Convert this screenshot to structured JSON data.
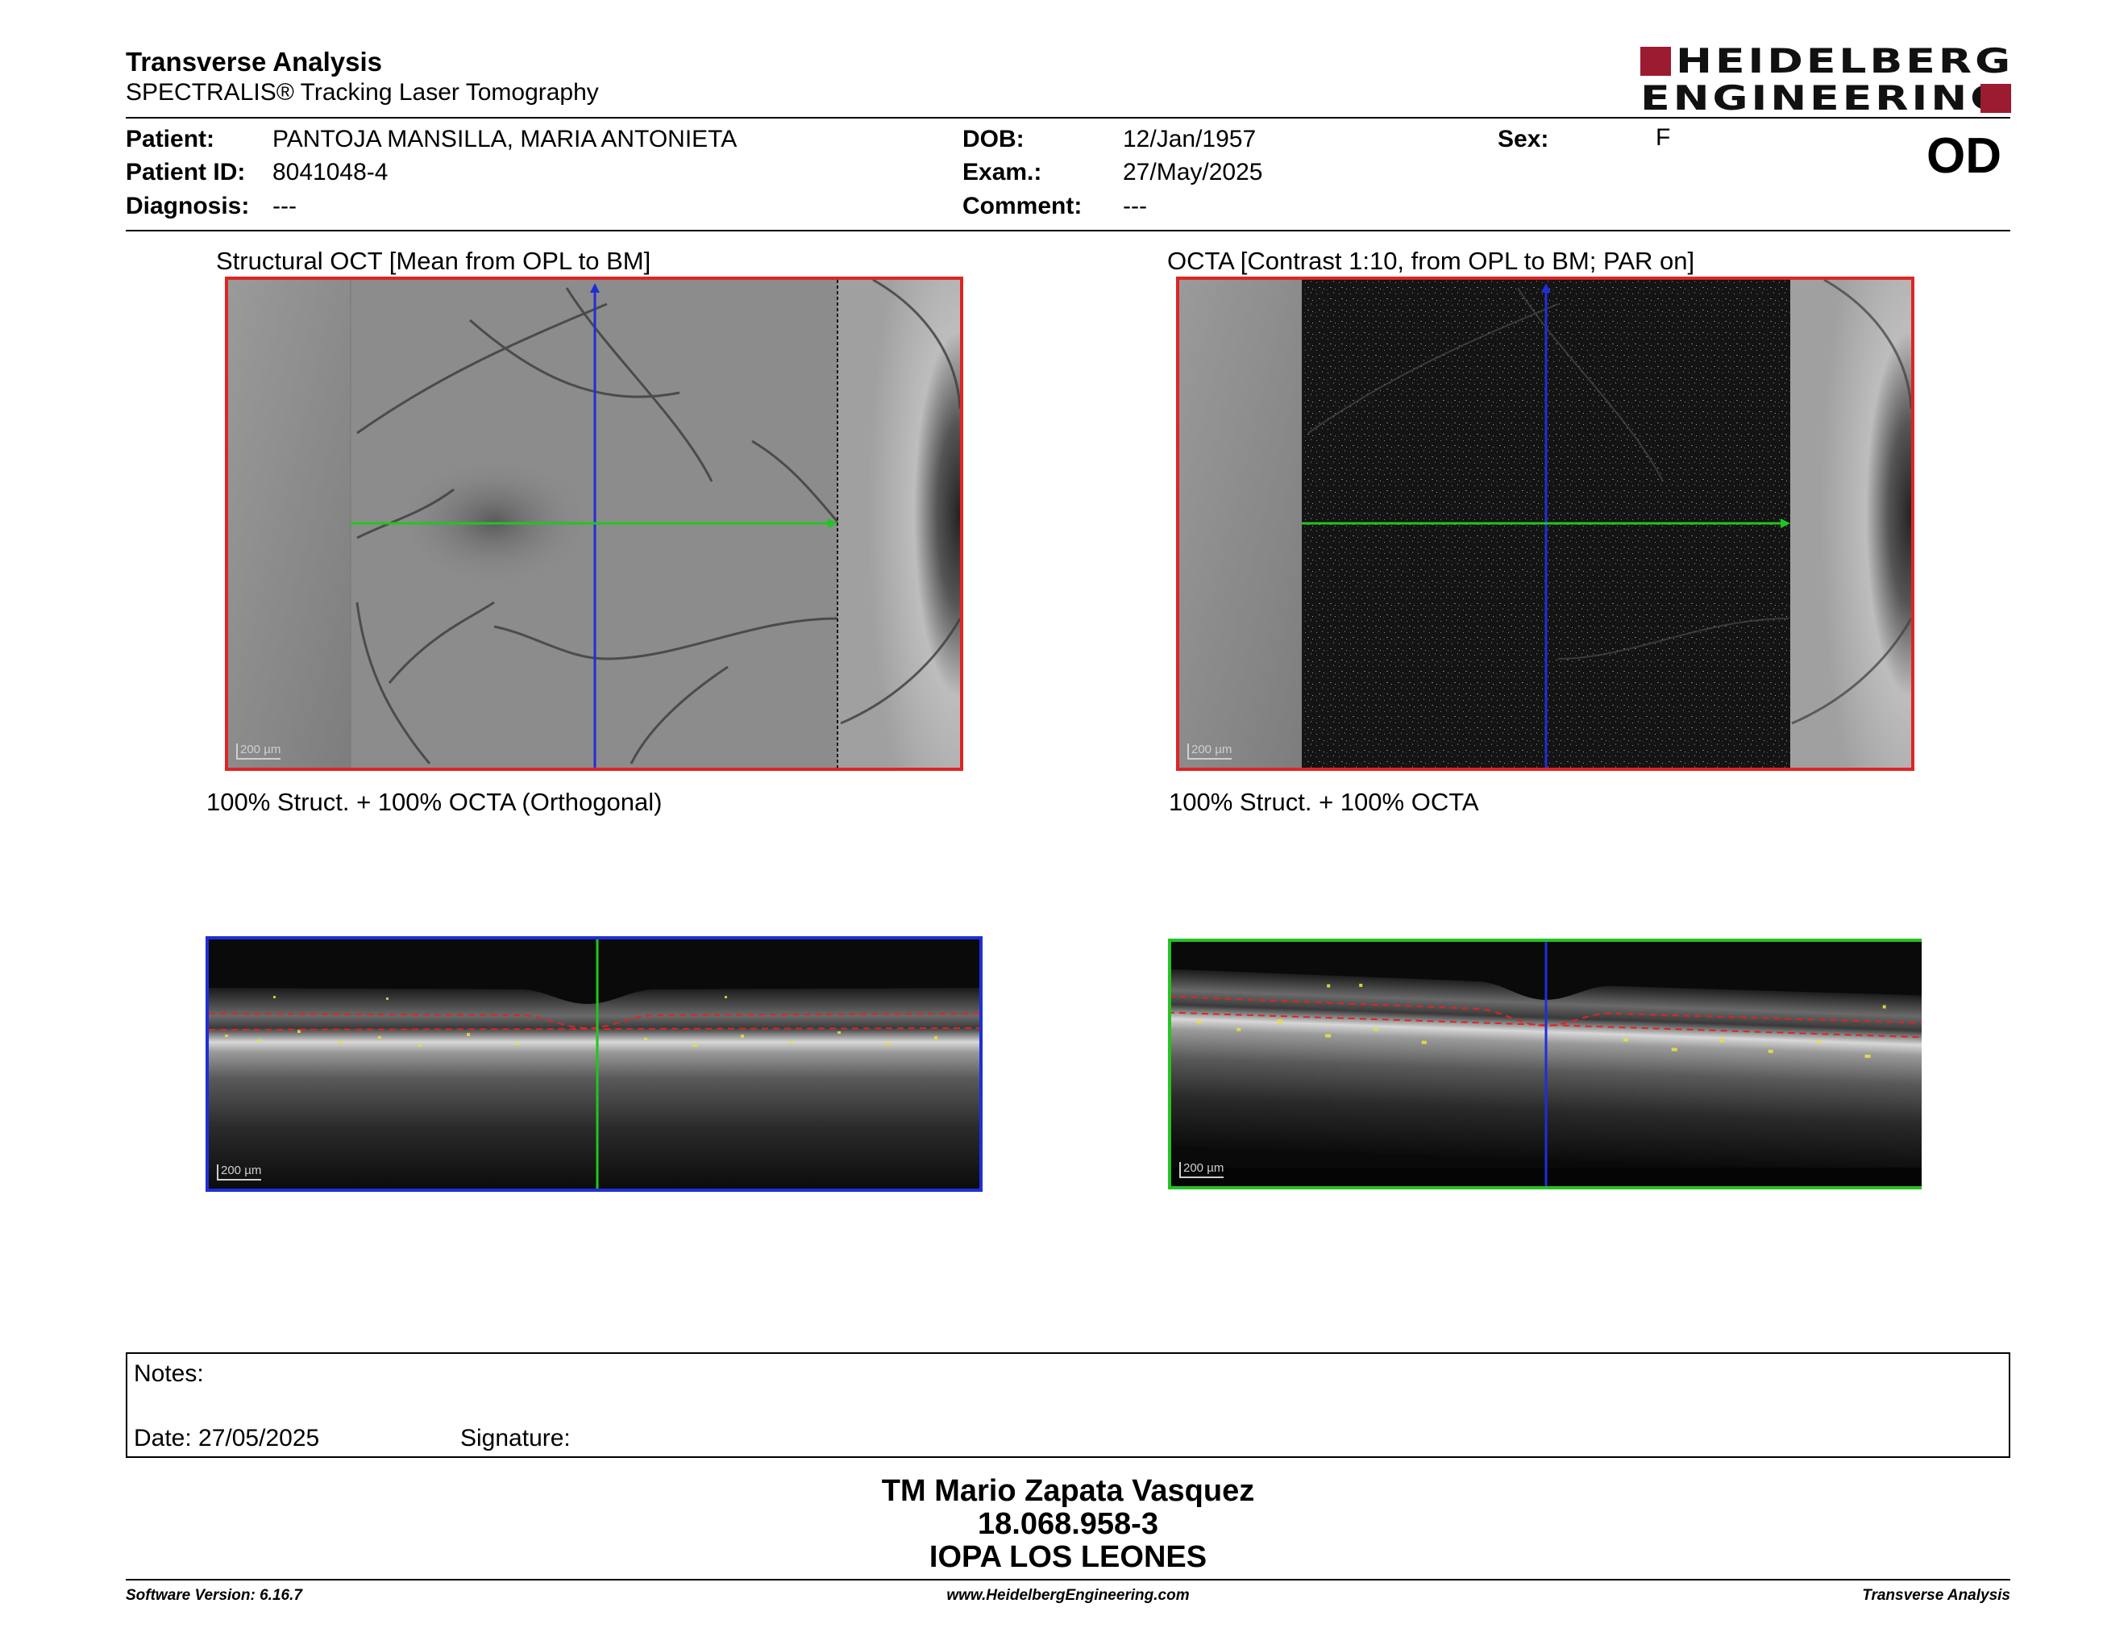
{
  "header": {
    "title": "Transverse Analysis",
    "subtitle": "SPECTRALIS® Tracking Laser Tomography",
    "logo_line1": "HEIDELBERG",
    "logo_line2": "ENGINEERING",
    "brand_color": "#9b1b30"
  },
  "patient": {
    "patient_label": "Patient:",
    "patient_value": "PANTOJA MANSILLA, MARIA ANTONIETA",
    "id_label": "Patient ID:",
    "id_value": "8041048-4",
    "diagnosis_label": "Diagnosis:",
    "diagnosis_value": "---",
    "dob_label": "DOB:",
    "dob_value": "12/Jan/1957",
    "exam_label": "Exam.:",
    "exam_value": "27/May/2025",
    "comment_label": "Comment:",
    "comment_value": "---",
    "sex_label": "Sex:",
    "sex_value": "F",
    "eye": "OD"
  },
  "images": {
    "structural_caption": "Structural OCT [Mean from OPL to BM]",
    "octa_caption": "OCTA [Contrast 1:10, from OPL to BM; PAR on]",
    "orthogonal_caption": "100% Struct. + 100% OCTA (Orthogonal)",
    "overlay_caption": "100% Struct. + 100% OCTA",
    "scale_label": "200 µm",
    "frame_red": "#e02424",
    "frame_blue": "#1f2fd6",
    "frame_green": "#22c422"
  },
  "notes": {
    "notes_label": "Notes:",
    "date_label": "Date: 27/05/2025",
    "signature_label": "Signature:"
  },
  "signature_block": {
    "name": "TM Mario Zapata Vasquez",
    "rut": "18.068.958-3",
    "institution": "IOPA LOS LEONES"
  },
  "footer": {
    "software": "Software Version: 6.16.7",
    "website": "www.HeidelbergEngineering.com",
    "report": "Transverse Analysis"
  }
}
